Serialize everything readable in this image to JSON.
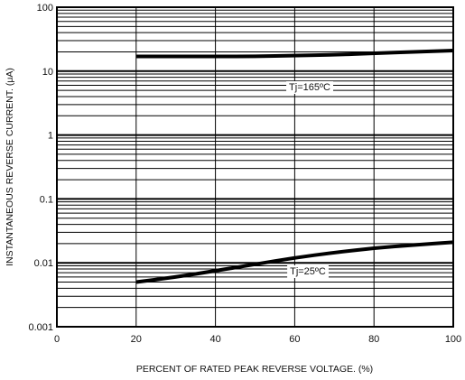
{
  "chart_data": {
    "type": "line",
    "xlabel": "PERCENT OF RATED PEAK REVERSE VOLTAGE. (%)",
    "ylabel": "INSTANTANEOUS REVERSE CURRENT. (μA)",
    "xlim": [
      0,
      100
    ],
    "ylim": [
      0.001,
      100
    ],
    "y_scale": "log",
    "grid": true,
    "x_ticks": [
      {
        "value": 0,
        "label": "0"
      },
      {
        "value": 20,
        "label": "20"
      },
      {
        "value": 40,
        "label": "40"
      },
      {
        "value": 60,
        "label": "60"
      },
      {
        "value": 80,
        "label": "80"
      },
      {
        "value": 100,
        "label": "100"
      }
    ],
    "y_ticks": [
      {
        "value": 0.001,
        "label": "0.001"
      },
      {
        "value": 0.01,
        "label": "0.01"
      },
      {
        "value": 0.1,
        "label": "0.1"
      },
      {
        "value": 1,
        "label": "1"
      },
      {
        "value": 10,
        "label": "10"
      },
      {
        "value": 100,
        "label": "100"
      }
    ],
    "series": [
      {
        "name": "Tj=165ºC",
        "x": [
          20,
          30,
          40,
          50,
          60,
          70,
          80,
          90,
          100
        ],
        "y": [
          17,
          17,
          17,
          17,
          17.5,
          18,
          19,
          20,
          21
        ]
      },
      {
        "name": "Tj=25ºC",
        "x": [
          20,
          30,
          40,
          50,
          60,
          70,
          80,
          90,
          100
        ],
        "y": [
          0.005,
          0.006,
          0.0075,
          0.0095,
          0.012,
          0.0145,
          0.017,
          0.019,
          0.021
        ]
      }
    ],
    "annotations": [
      {
        "text": "Tj=165ºC",
        "series": 0
      },
      {
        "text": "Tj=25ºC",
        "series": 1
      }
    ]
  }
}
